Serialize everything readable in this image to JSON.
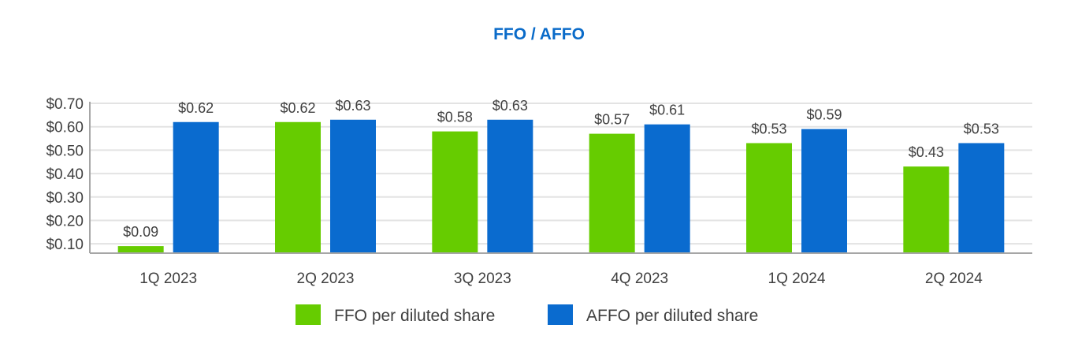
{
  "chart_data": {
    "type": "bar",
    "title": "FFO / AFFO",
    "xlabel": "",
    "ylabel": "",
    "categories": [
      "1Q 2023",
      "2Q 2023",
      "3Q 2023",
      "4Q 2023",
      "1Q 2024",
      "2Q 2024"
    ],
    "series": [
      {
        "name": "FFO per diluted share",
        "color": "#66cc00",
        "values": [
          0.09,
          0.62,
          0.58,
          0.57,
          0.53,
          0.43
        ],
        "labels": [
          "$0.09",
          "$0.62",
          "$0.58",
          "$0.57",
          "$0.53",
          "$0.43"
        ]
      },
      {
        "name": "AFFO per diluted share",
        "color": "#0a6bcf",
        "values": [
          0.62,
          0.63,
          0.63,
          0.61,
          0.59,
          0.53
        ],
        "labels": [
          "$0.62",
          "$0.63",
          "$0.63",
          "$0.61",
          "$0.59",
          "$0.53"
        ]
      }
    ],
    "yticks": [
      0.1,
      0.2,
      0.3,
      0.4,
      0.5,
      0.6,
      0.7
    ],
    "ytick_labels": [
      "$0.10",
      "$0.20",
      "$0.30",
      "$0.40",
      "$0.50",
      "$0.60",
      "$0.70"
    ],
    "ylim": [
      0.06,
      0.7
    ],
    "grid": true,
    "legend_position": "bottom"
  }
}
